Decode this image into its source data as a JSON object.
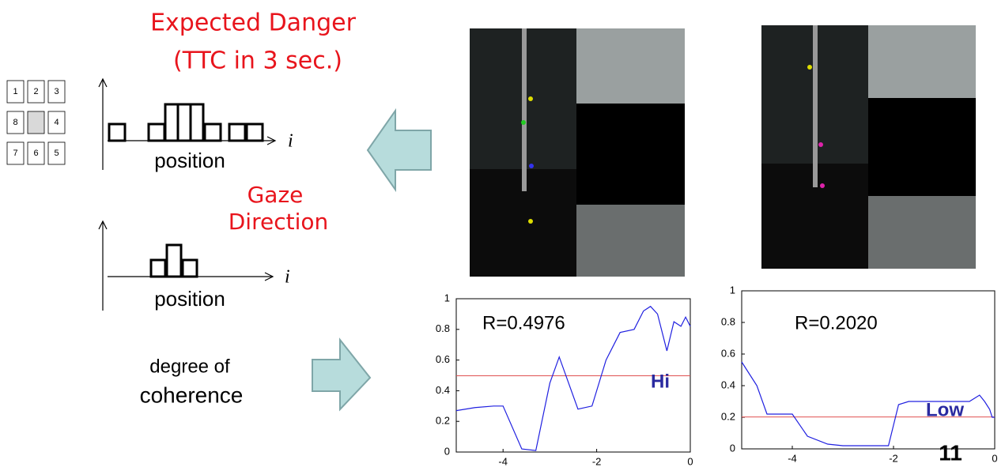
{
  "slide": {
    "title_lines": [
      "Expected Danger",
      "(TTC in 3 sec.)"
    ],
    "grid_labels": [
      "1",
      "2",
      "3",
      "4",
      "5",
      "6",
      "7",
      "8"
    ],
    "histograms": [
      {
        "x_label": "position",
        "index": "i"
      },
      {
        "x_label": "position",
        "index": "i"
      }
    ],
    "gaze_lines": [
      "Gaze",
      "Direction"
    ],
    "coherence_lines": [
      "degree of",
      "coherence"
    ],
    "page_number": "11"
  },
  "chart_data": [
    {
      "type": "line",
      "annotation": "R=0.4976",
      "level": "Hi",
      "threshold": 0.4976,
      "xlim": [
        -5,
        0
      ],
      "ylim": [
        0,
        1
      ],
      "xticks": [
        -4,
        -2,
        0
      ],
      "yticks": [
        0,
        0.2,
        0.4,
        0.6,
        0.8,
        1
      ],
      "color": "#2020e0",
      "threshold_color": "#e05050",
      "x": [
        -5,
        -4.6,
        -4.2,
        -4.0,
        -3.6,
        -3.3,
        -3.0,
        -2.8,
        -2.6,
        -2.4,
        -2.1,
        -1.8,
        -1.5,
        -1.2,
        -1.0,
        -0.85,
        -0.7,
        -0.5,
        -0.35,
        -0.2,
        -0.1,
        0
      ],
      "values": [
        0.27,
        0.29,
        0.3,
        0.3,
        0.02,
        0.01,
        0.45,
        0.62,
        0.45,
        0.28,
        0.3,
        0.6,
        0.78,
        0.8,
        0.92,
        0.95,
        0.9,
        0.66,
        0.85,
        0.82,
        0.88,
        0.82
      ]
    },
    {
      "type": "line",
      "annotation": "R=0.2020",
      "level": "Low",
      "threshold": 0.202,
      "xlim": [
        -5,
        0
      ],
      "ylim": [
        0,
        1
      ],
      "xticks": [
        -4,
        -2,
        0
      ],
      "yticks": [
        0,
        0.2,
        0.4,
        0.6,
        0.8,
        1
      ],
      "color": "#2020e0",
      "threshold_color": "#e05050",
      "x": [
        -5,
        -4.7,
        -4.5,
        -4.0,
        -3.7,
        -3.3,
        -3.0,
        -2.5,
        -2.1,
        -2.0,
        -1.9,
        -1.7,
        -1.0,
        -0.5,
        -0.3,
        -0.2,
        -0.1,
        -0.05,
        0
      ],
      "values": [
        0.55,
        0.4,
        0.22,
        0.22,
        0.08,
        0.03,
        0.02,
        0.02,
        0.02,
        0.15,
        0.28,
        0.3,
        0.3,
        0.3,
        0.34,
        0.3,
        0.25,
        0.2,
        0.2
      ]
    }
  ]
}
